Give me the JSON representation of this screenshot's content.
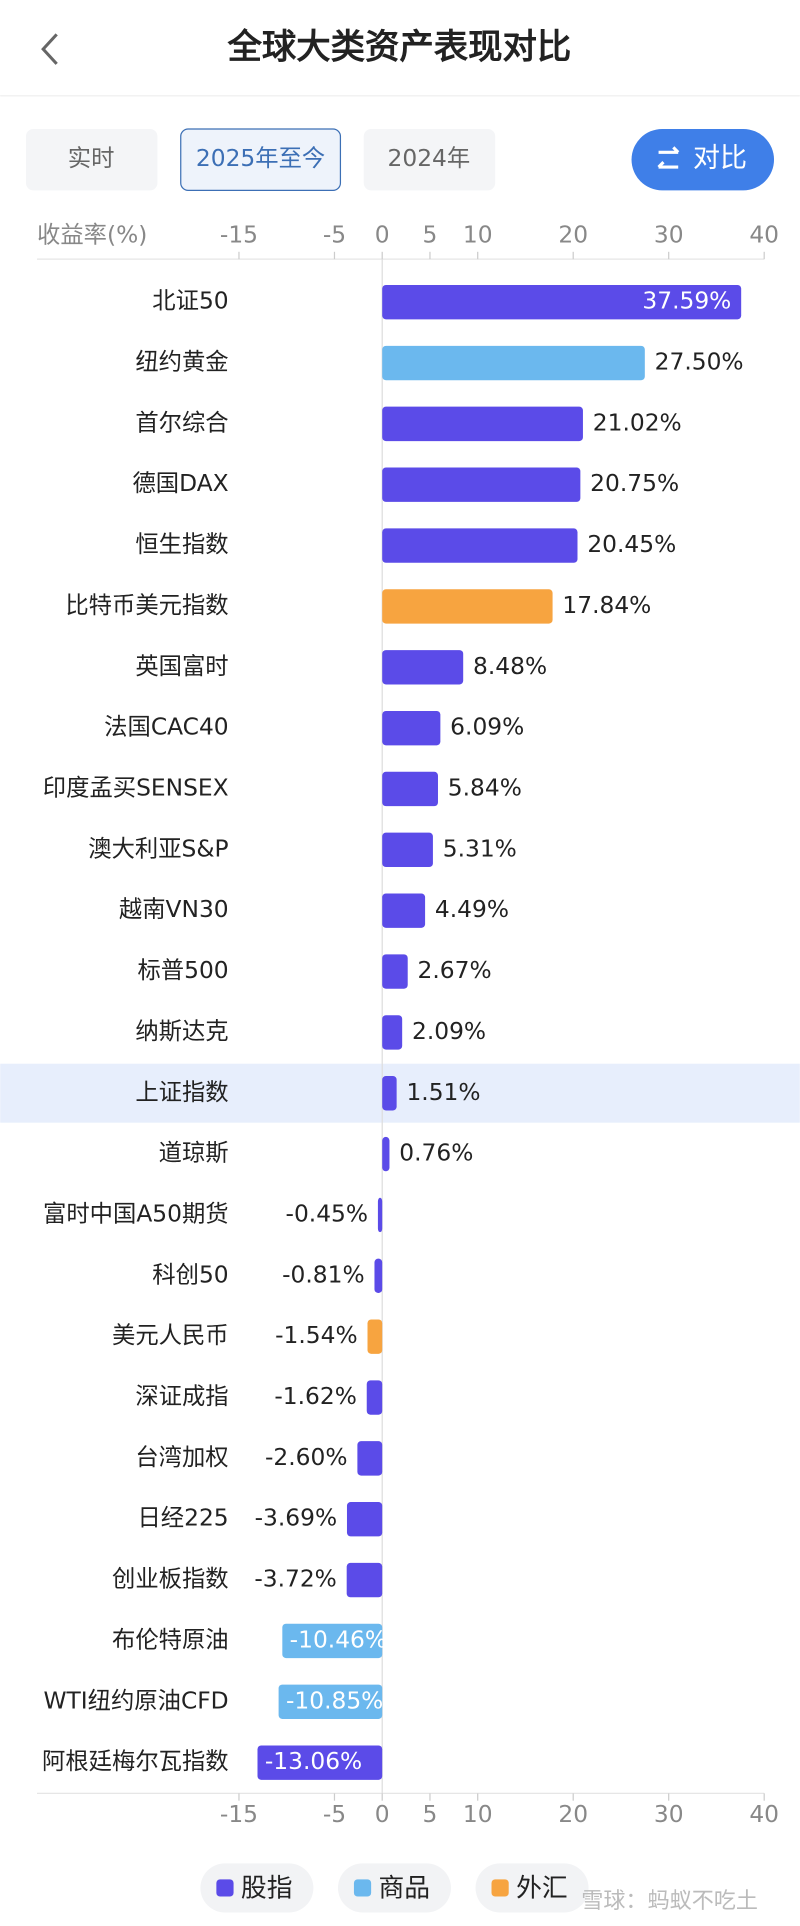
{
  "header": {
    "title": "全球大类资产表现对比"
  },
  "tabs": [
    "实时",
    "2025年至今",
    "2024年"
  ],
  "compare_button": "对比",
  "watermark": "雪球：蚂蚁不吃土",
  "chart_data": {
    "type": "hbar",
    "axis_label": "收益率(%)",
    "categories": [
      "北证50",
      "纽约黄金",
      "首尔综合",
      "德国DAX",
      "恒生指数",
      "比特币美元指数",
      "英国富时",
      "法国CAC40",
      "印度孟买SENSEX",
      "澳大利亚S&P",
      "越南VN30",
      "标普500",
      "纳斯达克",
      "上证指数",
      "道琼斯",
      "富时中国A50期货",
      "科创50",
      "美元人民币",
      "深证成指",
      "台湾加权",
      "日经225",
      "创业板指数",
      "布伦特原油",
      "WTI纽约原油CFD",
      "阿根廷梅尔瓦指数"
    ],
    "values": [
      37.59,
      27.5,
      21.02,
      20.75,
      20.45,
      17.84,
      8.48,
      6.09,
      5.84,
      5.31,
      4.49,
      2.67,
      2.09,
      1.51,
      0.76,
      -0.45,
      -0.81,
      -1.54,
      -1.62,
      -2.6,
      -3.69,
      -3.72,
      -10.46,
      -10.85,
      -13.06
    ],
    "value_labels": [
      "37.59%",
      "27.50%",
      "21.02%",
      "20.75%",
      "20.45%",
      "17.84%",
      "8.48%",
      "6.09%",
      "5.84%",
      "5.31%",
      "4.49%",
      "2.67%",
      "2.09%",
      "1.51%",
      "0.76%",
      "-0.45%",
      "-0.81%",
      "-1.54%",
      "-1.62%",
      "-2.60%",
      "-3.69%",
      "-3.72%",
      "-10.46%",
      "-10.85%",
      "-13.06%"
    ],
    "colors": [
      "#5b4be8",
      "#6bb8ee",
      "#5b4be8",
      "#5b4be8",
      "#5b4be8",
      "#f7a440",
      "#5b4be8",
      "#5b4be8",
      "#5b4be8",
      "#5b4be8",
      "#5b4be8",
      "#5b4be8",
      "#5b4be8",
      "#5b4be8",
      "#5b4be8",
      "#5b4be8",
      "#5b4be8",
      "#f7a440",
      "#5b4be8",
      "#5b4be8",
      "#5b4be8",
      "#5b4be8",
      "#6bb8ee",
      "#6bb8ee",
      "#5b4be8"
    ],
    "legend": [
      {
        "name": "股指",
        "color": "#5b4be8"
      },
      {
        "name": "商品",
        "color": "#6bb8ee"
      },
      {
        "name": "外汇",
        "color": "#f7a440"
      }
    ],
    "xlim": [
      -15,
      40
    ],
    "xticks": [
      -15,
      -5,
      0,
      5,
      10,
      20,
      30,
      40
    ]
  }
}
